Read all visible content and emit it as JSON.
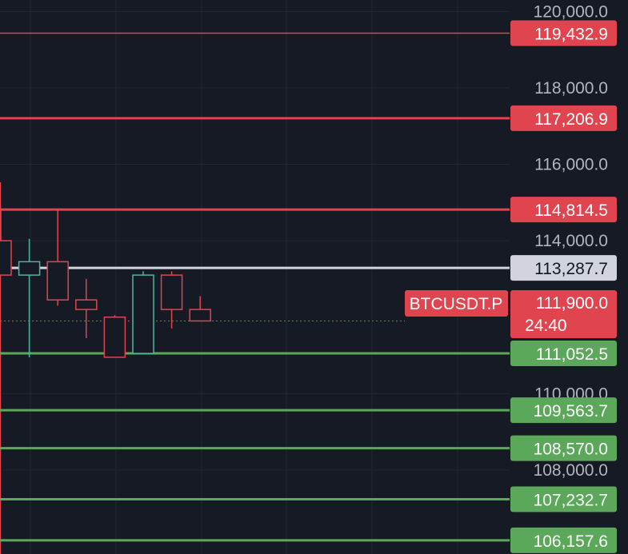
{
  "colors": {
    "background": "#161a25",
    "grid": "#232733",
    "resistance": "#e0454f",
    "support": "#5ca85a",
    "current": "#d1d4dc",
    "candle_up": "#4fb3a2",
    "candle_down": "#e0454f",
    "axis_text": "#b2b5be",
    "label_text": "#ffffff",
    "current_label_text": "#131722"
  },
  "chart_data": {
    "type": "candlestick",
    "symbol": "BTCUSDT.P",
    "ylim": [
      105800,
      120300
    ],
    "y_ticks": [
      {
        "value": 120000,
        "label": "120,000.0"
      },
      {
        "value": 118000,
        "label": "118,000.0"
      },
      {
        "value": 116000,
        "label": "116,000.0"
      },
      {
        "value": 114000,
        "label": "114,000.0"
      },
      {
        "value": 110000,
        "label": "110,000.0"
      },
      {
        "value": 108000,
        "label": "108,000.0"
      }
    ],
    "candles": [
      {
        "open": 114000,
        "high": 114800,
        "low": 113100,
        "close": 113100
      },
      {
        "open": 113100,
        "high": 114050,
        "low": 110950,
        "close": 113450
      },
      {
        "open": 113450,
        "high": 114800,
        "low": 112300,
        "close": 112450
      },
      {
        "open": 112450,
        "high": 113000,
        "low": 111450,
        "close": 112200
      },
      {
        "open": 112000,
        "high": 112050,
        "low": 110950,
        "close": 110950
      },
      {
        "open": 111050,
        "high": 113200,
        "low": 111050,
        "close": 113100
      },
      {
        "open": 113100,
        "high": 113200,
        "low": 111700,
        "close": 112200
      },
      {
        "open": 112200,
        "high": 112550,
        "low": 111900,
        "close": 111900
      }
    ],
    "levels": [
      {
        "value": 119432.9,
        "label": "119,432.9",
        "kind": "resistance"
      },
      {
        "value": 117206.9,
        "label": "117,206.9",
        "kind": "resistance"
      },
      {
        "value": 114814.5,
        "label": "114,814.5",
        "kind": "resistance"
      },
      {
        "value": 113287.7,
        "label": "113,287.7",
        "kind": "current"
      },
      {
        "value": 111052.5,
        "label": "111,052.5",
        "kind": "support"
      },
      {
        "value": 109563.7,
        "label": "109,563.7",
        "kind": "support"
      },
      {
        "value": 108570.0,
        "label": "108,570.0",
        "kind": "support"
      },
      {
        "value": 107232.7,
        "label": "107,232.7",
        "kind": "support"
      },
      {
        "value": 106157.6,
        "label": "106,157.6",
        "kind": "support"
      }
    ],
    "last_price": {
      "value": 111900.0,
      "label": "111,900.0",
      "countdown": "24:40"
    }
  }
}
